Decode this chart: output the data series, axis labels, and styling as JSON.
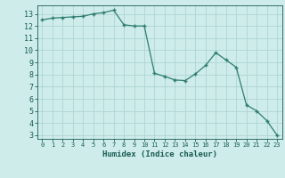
{
  "x": [
    0,
    1,
    2,
    3,
    4,
    5,
    6,
    7,
    8,
    9,
    10,
    11,
    12,
    13,
    14,
    15,
    16,
    17,
    18,
    19,
    20,
    21,
    22,
    23
  ],
  "y": [
    12.5,
    12.65,
    12.7,
    12.75,
    12.8,
    13.0,
    13.1,
    13.3,
    12.1,
    12.0,
    12.0,
    8.1,
    7.85,
    7.55,
    7.5,
    8.05,
    8.75,
    9.8,
    9.2,
    8.6,
    5.5,
    5.0,
    4.2,
    3.0
  ],
  "xlabel": "Humidex (Indice chaleur)",
  "ylim": [
    2.7,
    13.7
  ],
  "xlim": [
    -0.5,
    23.5
  ],
  "yticks": [
    3,
    4,
    5,
    6,
    7,
    8,
    9,
    10,
    11,
    12,
    13
  ],
  "xticks": [
    0,
    1,
    2,
    3,
    4,
    5,
    6,
    7,
    8,
    9,
    10,
    11,
    12,
    13,
    14,
    15,
    16,
    17,
    18,
    19,
    20,
    21,
    22,
    23
  ],
  "line_color": "#2e7d6e",
  "marker_color": "#2e7d6e",
  "bg_color": "#cdecea",
  "grid_color": "#aed5d2",
  "xlabel_color": "#1a5c52",
  "tick_color": "#1a5c52",
  "axes_color": "#1a5c52"
}
